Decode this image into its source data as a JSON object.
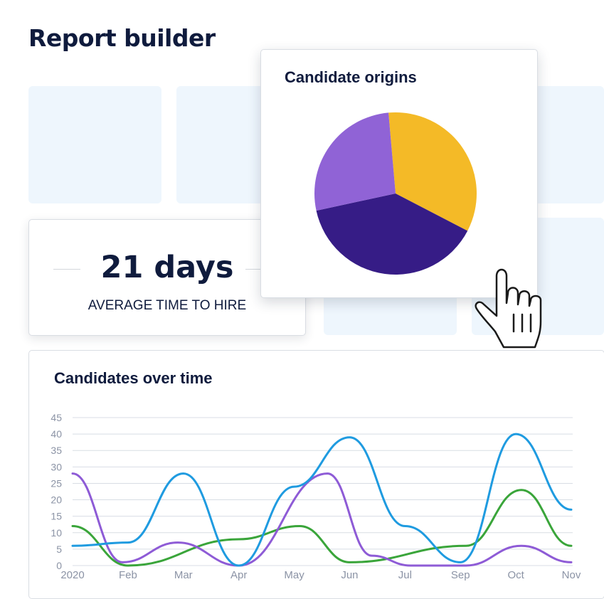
{
  "page": {
    "title": "Report builder"
  },
  "stat_card": {
    "value": "21 days",
    "label": "AVERAGE TIME TO HIRE"
  },
  "pie_card": {
    "title": "Candidate origins"
  },
  "line_card": {
    "title": "Candidates over time"
  },
  "chart_data": [
    {
      "type": "pie",
      "title": "Candidate origins",
      "values": [
        34,
        39,
        27
      ],
      "colors": [
        "#f4ba27",
        "#361c86",
        "#9063d6"
      ],
      "legend": "none"
    },
    {
      "type": "line",
      "title": "Candidates over time",
      "xlabel": "",
      "ylabel": "",
      "x_ticks": [
        "2020",
        "Feb",
        "Mar",
        "Apr",
        "May",
        "Jun",
        "Jul",
        "Sep",
        "Oct",
        "Nov"
      ],
      "yticks": [
        0,
        5,
        10,
        15,
        20,
        25,
        30,
        35,
        40,
        45
      ],
      "ylim": [
        0,
        45
      ],
      "grid": true,
      "legend": "none",
      "series": [
        {
          "color": "#1f9be0",
          "x": [
            0,
            1,
            2,
            3,
            4,
            5,
            6,
            7,
            8,
            9
          ],
          "y": [
            6,
            7,
            28,
            0,
            24,
            39,
            12,
            1,
            40,
            17
          ]
        },
        {
          "color": "#8e5bd6",
          "x": [
            0,
            0.9,
            1.9,
            3,
            4.6,
            5.4,
            6.1,
            7.1,
            8.1,
            9
          ],
          "y": [
            28,
            1,
            7,
            0,
            28,
            3,
            0,
            0,
            6,
            1
          ]
        },
        {
          "color": "#3aa53a",
          "x": [
            0,
            1,
            3,
            4.1,
            5,
            7.1,
            8.1,
            9
          ],
          "y": [
            12,
            0,
            8,
            12,
            1,
            6,
            23,
            6
          ]
        }
      ]
    }
  ]
}
